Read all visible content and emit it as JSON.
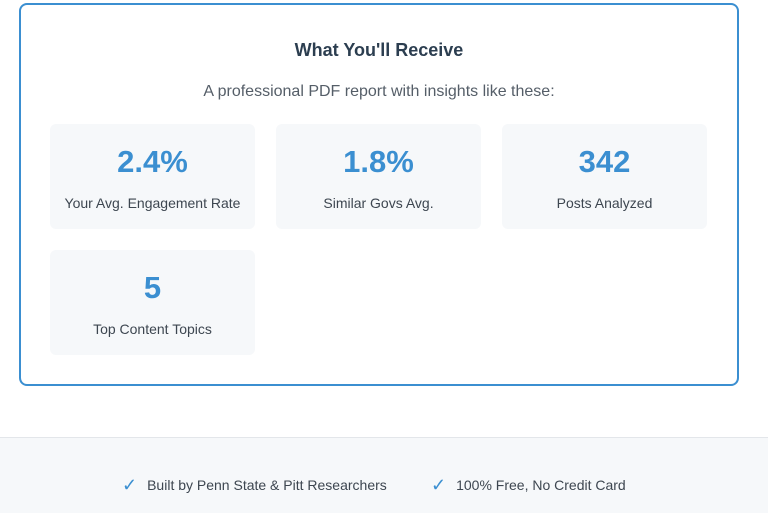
{
  "receive": {
    "title": "What You'll Receive",
    "subtitle": "A professional PDF report with insights like these:",
    "stats": [
      {
        "value": "2.4%",
        "label": "Your Avg. Engagement Rate"
      },
      {
        "value": "1.8%",
        "label": "Similar Govs Avg."
      },
      {
        "value": "342",
        "label": "Posts Analyzed"
      },
      {
        "value": "5",
        "label": "Top Content Topics"
      }
    ]
  },
  "footer": {
    "badges": [
      {
        "icon": "check-icon",
        "text": "Built by Penn State & Pitt Researchers"
      },
      {
        "icon": "check-icon",
        "text": "100% Free, No Credit Card"
      }
    ]
  },
  "colors": {
    "accent": "#3b8fd1",
    "heading": "#2c3e50",
    "card_bg": "#f6f8fa"
  }
}
